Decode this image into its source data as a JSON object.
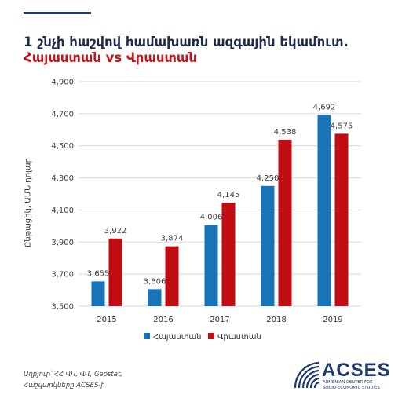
{
  "header": {
    "title_line1": "1 շնչի հաշվով համախառն ազգային եկամուտ.",
    "title_line2": "Հայաստան vs Վրաստան"
  },
  "footer": {
    "source_line1": "Աղբյուր՝ ՀՀ ՎԿ, ՎՎ, Geostat,",
    "source_line2": "Հաշվարկները ACSES-ի",
    "logo_text": "ACSES",
    "logo_sub1": "ARMENIAN CENTER FOR",
    "logo_sub2": "SOCIO-ECONOMIC STUDIES"
  },
  "chart_data": {
    "type": "bar",
    "title": "1 շնչի հաշվով համախառն ազգային եկամուտ. Հայաստան vs Վրաստան",
    "ylabel": "Ընթացիկ, ԱՄՆ դոլար",
    "xlabel": "",
    "categories": [
      "2015",
      "2016",
      "2017",
      "2018",
      "2019"
    ],
    "ylim": [
      3500,
      4900
    ],
    "yticks": [
      3500,
      3700,
      3900,
      4100,
      4300,
      4500,
      4700,
      4900
    ],
    "ytick_labels": [
      "3,500",
      "3,700",
      "3,900",
      "4,100",
      "4,300",
      "4,500",
      "4,700",
      "4,900"
    ],
    "grid": true,
    "legend": "bottom",
    "series": [
      {
        "name": "Հայաստան",
        "color": "#1a75b8",
        "values": [
          3655,
          3606,
          4006,
          4250,
          4692
        ],
        "labels": [
          "3,655",
          "3,606",
          "4,006",
          "4,250",
          "4,692"
        ]
      },
      {
        "name": "Վրաստան",
        "color": "#c00d14",
        "values": [
          3922,
          3874,
          4145,
          4538,
          4575
        ],
        "labels": [
          "3,922",
          "3,874",
          "4,145",
          "4,538",
          "4,575"
        ]
      }
    ]
  }
}
